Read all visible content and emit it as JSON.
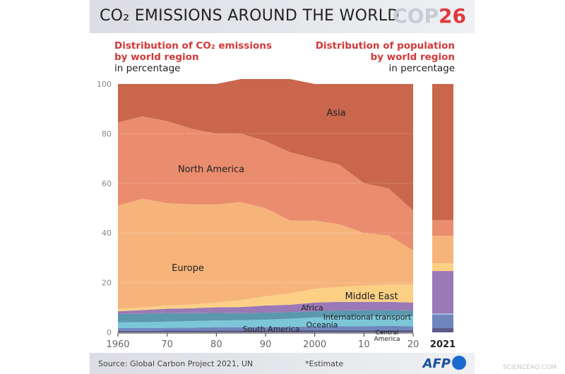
{
  "header": {
    "title": "CO₂ EMISSIONS AROUND THE WORLD",
    "logo_cop": "COP",
    "logo_num": "26"
  },
  "left_subtitle": {
    "line1": "Distribution of CO₂ emissions",
    "line2": "by world region",
    "unit": "in percentage"
  },
  "right_subtitle": {
    "line1": "Distribution of population",
    "line2": "by world region",
    "unit": "in percentage"
  },
  "footer": {
    "source": "Source: Global Carbon Project 2021, UN",
    "note": "*Estimate",
    "logo": "AFP"
  },
  "watermark": "SCIENCEAQ.COM",
  "chart_data": [
    {
      "type": "area",
      "stacked": true,
      "title": "Distribution of CO₂ emissions by world region",
      "ylabel": "in percentage",
      "ylim": [
        0,
        100
      ],
      "yticks": [
        0,
        20,
        40,
        60,
        80,
        100
      ],
      "xticks": [
        1960,
        1970,
        1980,
        1990,
        2000,
        2010,
        2020
      ],
      "xtick_labels": [
        "1960",
        "70",
        "80",
        "90",
        "2000",
        "10",
        "20"
      ],
      "grid": true,
      "x": [
        1960,
        1965,
        1970,
        1975,
        1980,
        1985,
        1990,
        1995,
        2000,
        2005,
        2010,
        2015,
        2020
      ],
      "series": [
        {
          "name": "Central America",
          "color": "#5c5a86",
          "values": [
            0.6,
            0.6,
            0.7,
            0.7,
            0.8,
            0.8,
            0.8,
            0.8,
            0.9,
            0.9,
            0.9,
            0.9,
            0.9
          ]
        },
        {
          "name": "South America",
          "color": "#6f86bd",
          "values": [
            1.1,
            1.1,
            1.1,
            1.2,
            1.3,
            1.3,
            1.3,
            1.4,
            1.5,
            1.5,
            1.6,
            1.7,
            1.6
          ]
        },
        {
          "name": "Oceania",
          "color": "#7cc6d8",
          "values": [
            2.3,
            2.4,
            2.5,
            2.6,
            2.7,
            2.8,
            3.0,
            3.3,
            3.6,
            3.8,
            3.9,
            4.0,
            4.0
          ]
        },
        {
          "name": "International transport",
          "color": "#5b98ad",
          "values": [
            3.4,
            3.4,
            3.5,
            3.2,
            3.0,
            2.8,
            2.9,
            2.6,
            2.5,
            2.6,
            2.5,
            2.4,
            2.3
          ]
        },
        {
          "name": "Africa",
          "color": "#9b78b6",
          "values": [
            1.1,
            1.5,
            1.7,
            2.0,
            2.3,
            2.5,
            2.8,
            3.0,
            3.5,
            3.5,
            3.4,
            3.3,
            3.2
          ]
        },
        {
          "name": "Middle East",
          "color": "#fbd085",
          "values": [
            0.9,
            1.0,
            1.3,
            1.5,
            1.9,
            2.8,
            3.7,
            4.6,
            5.5,
            6.0,
            6.5,
            7.0,
            7.3
          ]
        },
        {
          "name": "Europe",
          "color": "#f6b47b",
          "values": [
            41.6,
            43.8,
            41.2,
            40.3,
            39.5,
            39.4,
            35.5,
            29.3,
            27.5,
            25.2,
            21.2,
            19.7,
            13.7
          ]
        },
        {
          "name": "North America",
          "color": "#ea8d6e",
          "values": [
            33.5,
            33.2,
            33.0,
            30.5,
            28.5,
            27.6,
            27.0,
            27.5,
            25.0,
            24.0,
            20.0,
            19.0,
            16.0
          ]
        },
        {
          "name": "Asia",
          "color": "#c9664b",
          "values": [
            15.5,
            13.0,
            15.0,
            18.0,
            20.0,
            22.0,
            25.0,
            29.5,
            30.0,
            32.5,
            40.0,
            42.0,
            51.0
          ]
        }
      ]
    },
    {
      "type": "bar",
      "stacked": true,
      "title": "Distribution of population by world region",
      "ylabel": "in percentage",
      "categories": [
        "2021"
      ],
      "ylim": [
        0,
        100
      ],
      "series": [
        {
          "name": "Central America",
          "color": "#5c5a86",
          "values": [
            1.7
          ]
        },
        {
          "name": "South America",
          "color": "#6f86bd",
          "values": [
            5.4
          ]
        },
        {
          "name": "Oceania",
          "color": "#9fbde6",
          "values": [
            0.5
          ]
        },
        {
          "name": "Africa",
          "color": "#9b78b6",
          "values": [
            17.1
          ]
        },
        {
          "name": "Middle East",
          "color": "#fbd085",
          "values": [
            3.1
          ]
        },
        {
          "name": "Europe",
          "color": "#f6b47b",
          "values": [
            11.1
          ]
        },
        {
          "name": "North America",
          "color": "#ea8d6e",
          "values": [
            6.3
          ]
        },
        {
          "name": "Asia",
          "color": "#c9664b",
          "values": [
            54.8
          ]
        }
      ]
    }
  ]
}
